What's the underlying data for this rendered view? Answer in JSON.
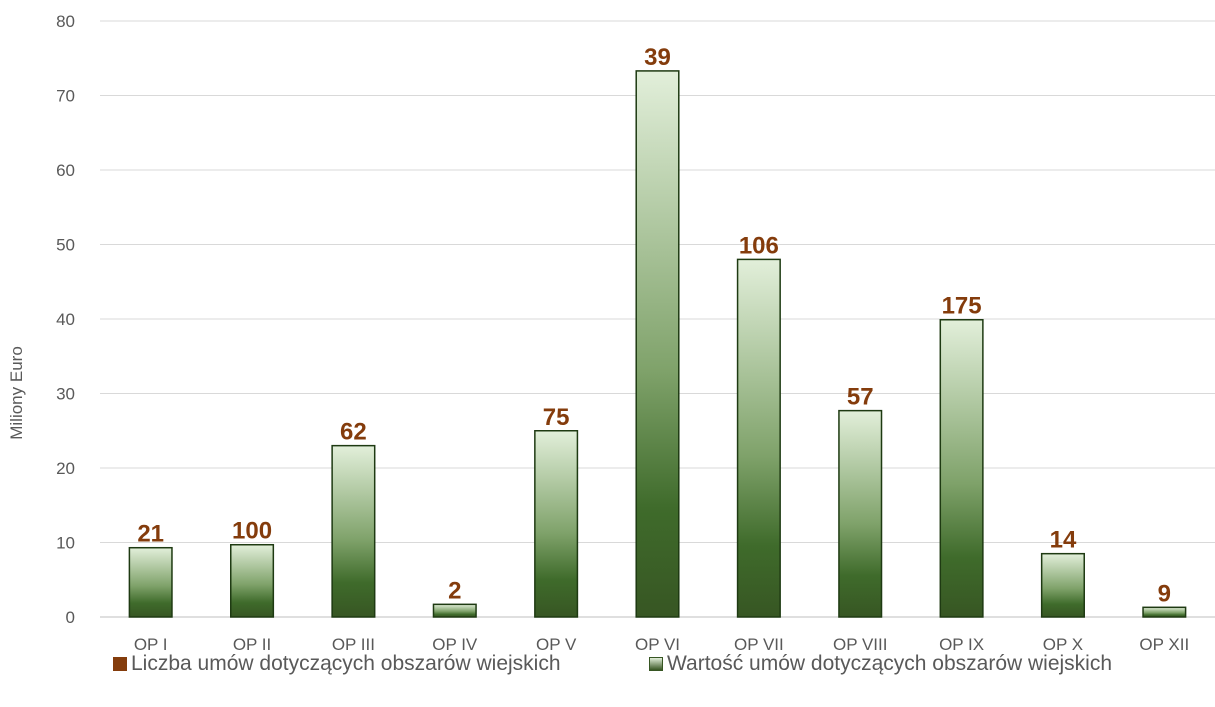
{
  "chart_data": {
    "type": "bar",
    "title": "",
    "xlabel": "",
    "ylabel": "Miliony Euro",
    "ylim": [
      0,
      80
    ],
    "yticks": [
      0,
      10,
      20,
      30,
      40,
      50,
      60,
      70,
      80
    ],
    "grid": true,
    "legend_position": "bottom",
    "categories": [
      "OP I",
      "OP II",
      "OP III",
      "OP IV",
      "OP V",
      "OP VI",
      "OP VII",
      "OP VIII",
      "OP IX",
      "OP X",
      "OP XII"
    ],
    "series": [
      {
        "name": "Wartość umów dotyczących obszarów wiejskich",
        "values": [
          9.3,
          9.7,
          23.0,
          1.7,
          25.0,
          73.3,
          48.0,
          27.7,
          39.9,
          8.5,
          1.3
        ],
        "color": "#375623"
      },
      {
        "name": "Liczba umów dotyczących obszarów wiejskich",
        "data_labels": [
          "21",
          "100",
          "62",
          "2",
          "75",
          "39",
          "106",
          "57",
          "175",
          "14",
          "9"
        ],
        "color": "#843c0c"
      }
    ]
  }
}
